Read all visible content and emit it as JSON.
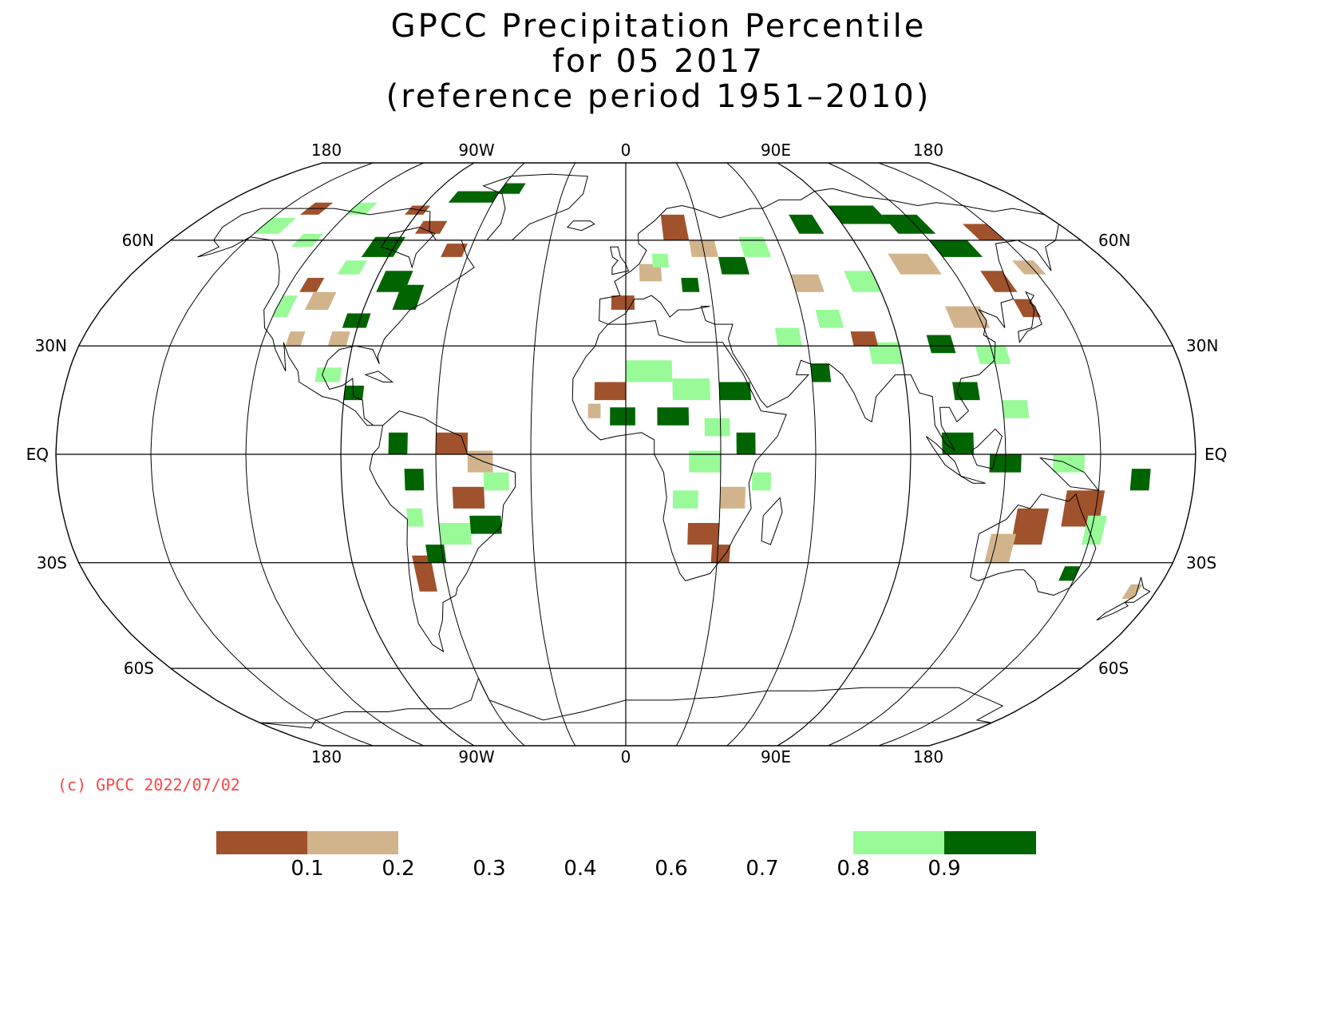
{
  "title": {
    "line1": "GPCC Precipitation Percentile",
    "line2": "for 05 2017",
    "line3": "(reference period 1951–2010)"
  },
  "map": {
    "projection": "Robinson",
    "longitude_labels_top": [
      "180",
      "90W",
      "0",
      "90E",
      "180"
    ],
    "longitude_labels_bottom": [
      "180",
      "90W",
      "0",
      "90E",
      "180"
    ],
    "latitude_labels": [
      "60N",
      "30N",
      "EQ",
      "30S",
      "60S"
    ],
    "central_meridian": 0
  },
  "copyright": "(c) GPCC 2022/07/02",
  "legend": {
    "tick_labels": [
      "0.1",
      "0.2",
      "0.3",
      "0.4",
      "0.6",
      "0.7",
      "0.8",
      "0.9"
    ],
    "colors": {
      "below_0_1": "#a0522d",
      "from_0_1_to_0_2": "#d2b48c",
      "from_0_8_to_0_9": "#98fb98",
      "above_0_9": "#006400"
    }
  },
  "colors": {
    "very_dry": "#a0522d",
    "dry": "#d2b48c",
    "wet": "#98fb98",
    "very_wet": "#006400",
    "grid": "#000000",
    "coastline": "#000000"
  }
}
